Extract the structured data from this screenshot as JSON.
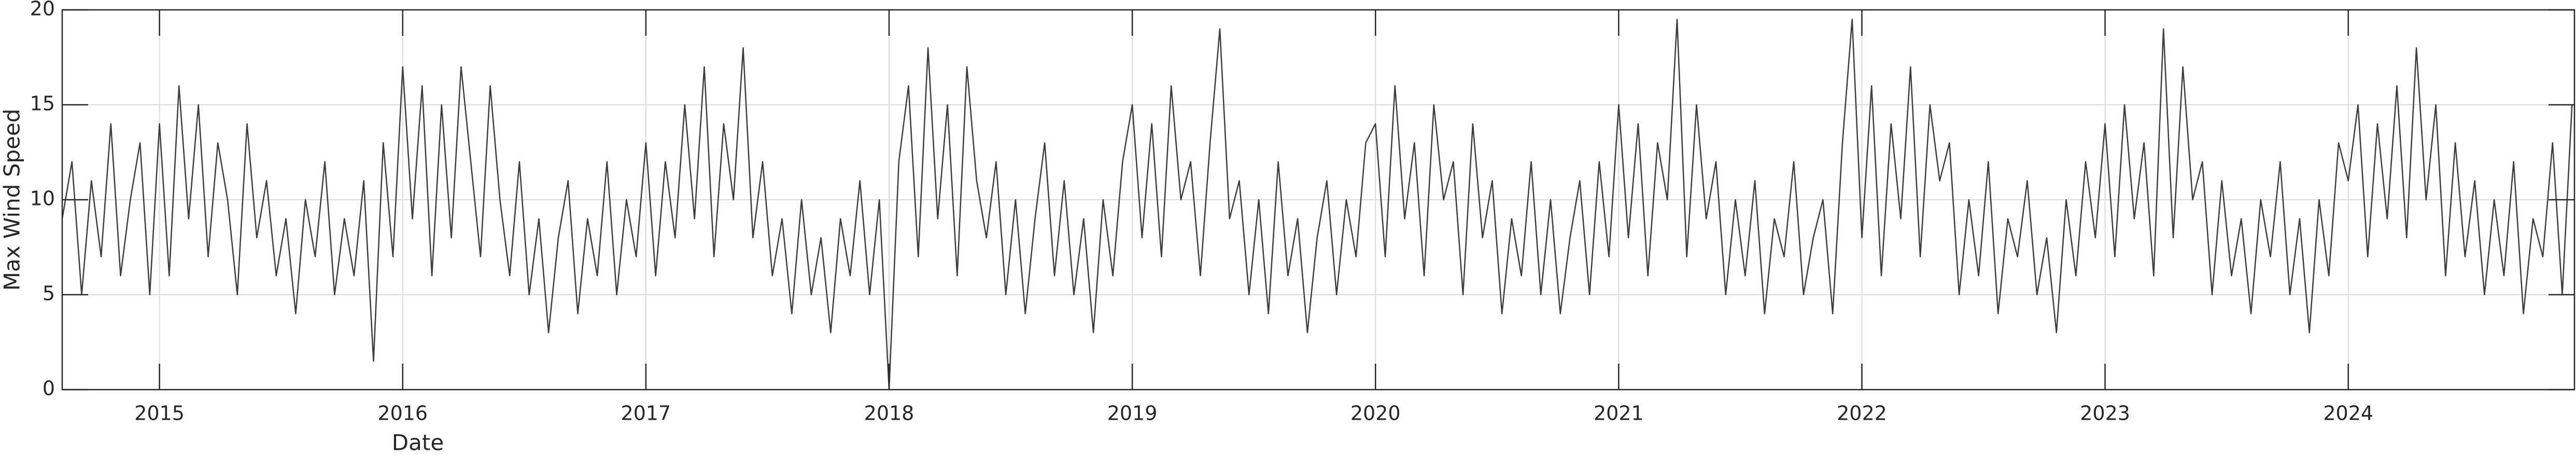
{
  "chart_data": {
    "type": "line",
    "xlabel": "Date",
    "ylabel": "Max Wind Speed",
    "color": "#3c3c3c",
    "grid": true,
    "xlim": [
      2014.6,
      2024.93
    ],
    "xticks": [
      2015,
      2016,
      2017,
      2018,
      2019,
      2020,
      2021,
      2022,
      2023,
      2024
    ],
    "ylim": [
      0,
      20
    ],
    "yticks": [
      0,
      5,
      10,
      15,
      20
    ],
    "x": [
      2014.6,
      2014.64,
      2014.68,
      2014.72,
      2014.76,
      2014.8,
      2014.84,
      2014.88,
      2014.92,
      2014.96,
      2015,
      2015.04,
      2015.08,
      2015.12,
      2015.16,
      2015.2,
      2015.24,
      2015.28,
      2015.32,
      2015.36,
      2015.4,
      2015.44,
      2015.48,
      2015.52,
      2015.56,
      2015.6,
      2015.64,
      2015.68,
      2015.72,
      2015.76,
      2015.8,
      2015.84,
      2015.88,
      2015.92,
      2015.96,
      2016,
      2016.04,
      2016.08,
      2016.12,
      2016.16,
      2016.2,
      2016.24,
      2016.28,
      2016.32,
      2016.36,
      2016.4,
      2016.44,
      2016.48,
      2016.52,
      2016.56,
      2016.6,
      2016.64,
      2016.68,
      2016.72,
      2016.76,
      2016.8,
      2016.84,
      2016.88,
      2016.92,
      2016.96,
      2017,
      2017.04,
      2017.08,
      2017.12,
      2017.16,
      2017.2,
      2017.24,
      2017.28,
      2017.32,
      2017.36,
      2017.4,
      2017.44,
      2017.48,
      2017.52,
      2017.56,
      2017.6,
      2017.64,
      2017.68,
      2017.72,
      2017.76,
      2017.8,
      2017.84,
      2017.88,
      2017.92,
      2017.96,
      2018,
      2018.04,
      2018.08,
      2018.12,
      2018.16,
      2018.2,
      2018.24,
      2018.28,
      2018.32,
      2018.36,
      2018.4,
      2018.44,
      2018.48,
      2018.52,
      2018.56,
      2018.6,
      2018.64,
      2018.68,
      2018.72,
      2018.76,
      2018.8,
      2018.84,
      2018.88,
      2018.92,
      2018.96,
      2019,
      2019.04,
      2019.08,
      2019.12,
      2019.16,
      2019.2,
      2019.24,
      2019.28,
      2019.32,
      2019.36,
      2019.4,
      2019.44,
      2019.48,
      2019.52,
      2019.56,
      2019.6,
      2019.64,
      2019.68,
      2019.72,
      2019.76,
      2019.8,
      2019.84,
      2019.88,
      2019.92,
      2019.96,
      2020,
      2020.04,
      2020.08,
      2020.12,
      2020.16,
      2020.2,
      2020.24,
      2020.28,
      2020.32,
      2020.36,
      2020.4,
      2020.44,
      2020.48,
      2020.52,
      2020.56,
      2020.6,
      2020.64,
      2020.68,
      2020.72,
      2020.76,
      2020.8,
      2020.84,
      2020.88,
      2020.92,
      2020.96,
      2021,
      2021.04,
      2021.08,
      2021.12,
      2021.16,
      2021.2,
      2021.24,
      2021.28,
      2021.32,
      2021.36,
      2021.4,
      2021.44,
      2021.48,
      2021.52,
      2021.56,
      2021.6,
      2021.64,
      2021.68,
      2021.72,
      2021.76,
      2021.8,
      2021.84,
      2021.88,
      2021.92,
      2021.96,
      2022,
      2022.04,
      2022.08,
      2022.12,
      2022.16,
      2022.2,
      2022.24,
      2022.28,
      2022.32,
      2022.36,
      2022.4,
      2022.44,
      2022.48,
      2022.52,
      2022.56,
      2022.6,
      2022.64,
      2022.68,
      2022.72,
      2022.76,
      2022.8,
      2022.84,
      2022.88,
      2022.92,
      2022.96,
      2023,
      2023.04,
      2023.08,
      2023.12,
      2023.16,
      2023.2,
      2023.24,
      2023.28,
      2023.32,
      2023.36,
      2023.4,
      2023.44,
      2023.48,
      2023.52,
      2023.56,
      2023.6,
      2023.64,
      2023.68,
      2023.72,
      2023.76,
      2023.8,
      2023.84,
      2023.88,
      2023.92,
      2023.96,
      2024,
      2024.04,
      2024.08,
      2024.12,
      2024.16,
      2024.2,
      2024.24,
      2024.28,
      2024.32,
      2024.36,
      2024.4,
      2024.44,
      2024.48,
      2024.52,
      2024.56,
      2024.6,
      2024.64,
      2024.68,
      2024.72,
      2024.76,
      2024.8,
      2024.84,
      2024.88,
      2024.92
    ],
    "values": [
      9,
      12,
      5,
      11,
      7,
      14,
      6,
      10,
      13,
      5,
      14,
      6,
      16,
      9,
      15,
      7,
      13,
      10,
      5,
      14,
      8,
      11,
      6,
      9,
      4,
      10,
      7,
      12,
      5,
      9,
      6,
      11,
      1.5,
      13,
      7,
      17,
      9,
      16,
      6,
      15,
      8,
      17,
      12,
      7,
      16,
      10,
      6,
      12,
      5,
      9,
      3,
      8,
      11,
      4,
      9,
      6,
      12,
      5,
      10,
      7,
      13,
      6,
      12,
      8,
      15,
      9,
      17,
      7,
      14,
      10,
      18,
      8,
      12,
      6,
      9,
      4,
      10,
      5,
      8,
      3,
      9,
      6,
      11,
      5,
      10,
      0,
      12,
      16,
      7,
      18,
      9,
      15,
      6,
      17,
      11,
      8,
      12,
      5,
      10,
      4,
      9,
      13,
      6,
      11,
      5,
      9,
      3,
      10,
      6,
      12,
      15,
      8,
      14,
      7,
      16,
      10,
      12,
      6,
      13,
      19,
      9,
      11,
      5,
      10,
      4,
      12,
      6,
      9,
      3,
      8,
      11,
      5,
      10,
      7,
      13,
      14,
      7,
      16,
      9,
      13,
      6,
      15,
      10,
      12,
      5,
      14,
      8,
      11,
      4,
      9,
      6,
      12,
      5,
      10,
      4,
      8,
      11,
      5,
      12,
      7,
      15,
      8,
      14,
      6,
      13,
      10,
      19.5,
      7,
      15,
      9,
      12,
      5,
      10,
      6,
      11,
      4,
      9,
      7,
      12,
      5,
      8,
      10,
      4,
      13,
      19.5,
      8,
      16,
      6,
      14,
      9,
      17,
      7,
      15,
      11,
      13,
      5,
      10,
      6,
      12,
      4,
      9,
      7,
      11,
      5,
      8,
      3,
      10,
      6,
      12,
      8,
      14,
      7,
      15,
      9,
      13,
      6,
      19,
      8,
      17,
      10,
      12,
      5,
      11,
      6,
      9,
      4,
      10,
      7,
      12,
      5,
      9,
      3,
      10,
      6,
      13,
      11,
      15,
      7,
      14,
      9,
      16,
      8,
      18,
      10,
      15,
      6,
      13,
      7,
      11,
      5,
      10,
      6,
      12,
      4,
      9,
      7,
      13,
      5,
      15
    ]
  }
}
